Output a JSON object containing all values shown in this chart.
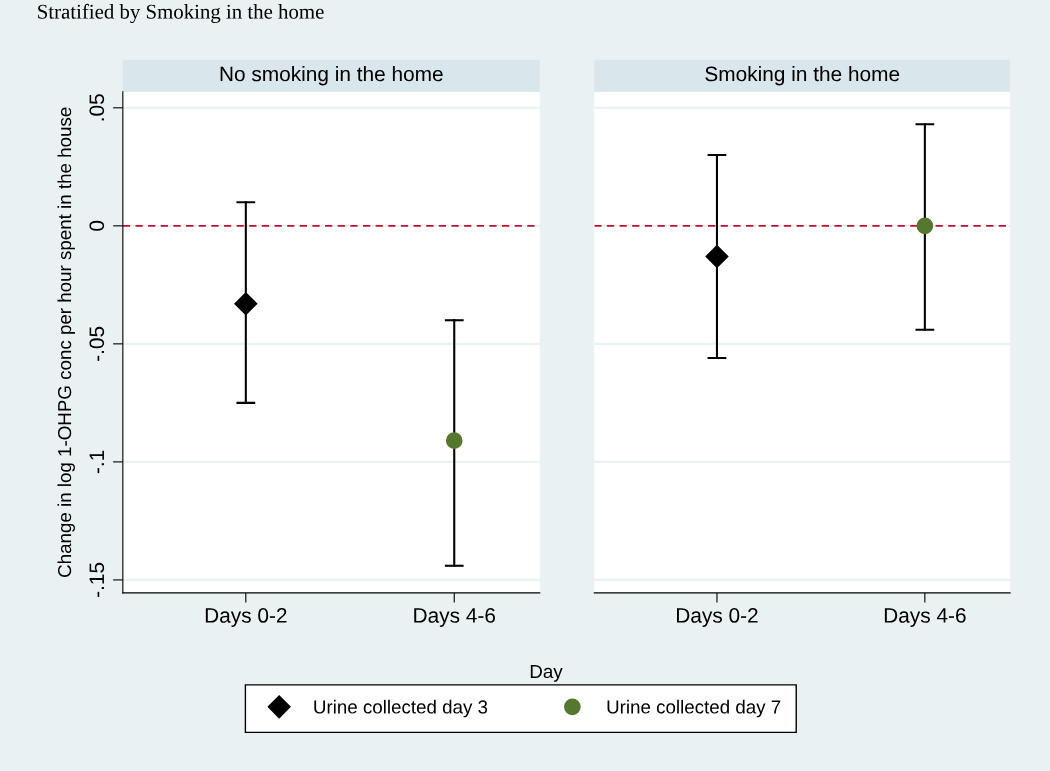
{
  "chart_data": [
    {
      "type": "scatter",
      "title": "No smoking in the home",
      "ylabel": "Change in log 1-OHPG conc per hour spent in the house",
      "xlabel": "Day",
      "annotations": [
        "Stratified by Smoking in the home"
      ],
      "categories": [
        "Days 0-2",
        "Days 4-6"
      ],
      "ylim": [
        -0.1555,
        0.0568
      ],
      "yticks": [
        {
          "value": 0.05,
          "label": ".05"
        },
        0,
        {
          "value": -0.05,
          "label": "-.05"
        },
        {
          "value": -0.1,
          "label": "-.1"
        },
        {
          "value": -0.15,
          "label": "-.15"
        }
      ],
      "grid": "y",
      "legend": "bottom",
      "ref_lines": [
        {
          "axis": "y",
          "value": 0,
          "label": null,
          "color": "#c8102e",
          "line_style": "dashed"
        }
      ],
      "series": [
        {
          "name": "Urine collected day 3",
          "color": "#000000",
          "marker": "diamond",
          "values": [
            -0.033,
            null
          ],
          "errors": [
            [
              -0.075,
              0.01
            ],
            null
          ]
        },
        {
          "name": "Urine collected day 7",
          "color": "#55782e",
          "marker": "circle",
          "values": [
            null,
            -0.091
          ],
          "errors": [
            null,
            [
              -0.144,
              -0.04
            ]
          ]
        }
      ]
    },
    {
      "type": "scatter",
      "title": "Smoking in the home",
      "categories": [
        "Days 0-2",
        "Days 4-6"
      ],
      "ylim": [
        -0.1555,
        0.0568
      ],
      "tick_labels": "x",
      "grid": "y",
      "ref_lines": [
        {
          "axis": "y",
          "value": 0,
          "label": null,
          "color": "#c8102e",
          "line_style": "dashed"
        }
      ],
      "series": [
        {
          "color": "#000000",
          "marker": "diamond",
          "values": [
            -0.013,
            null
          ],
          "errors": [
            [
              -0.056,
              0.03
            ],
            null
          ]
        },
        {
          "color": "#55782e",
          "marker": "circle",
          "values": [
            null,
            0.0
          ],
          "errors": [
            null,
            [
              -0.044,
              0.043
            ]
          ]
        }
      ]
    }
  ]
}
